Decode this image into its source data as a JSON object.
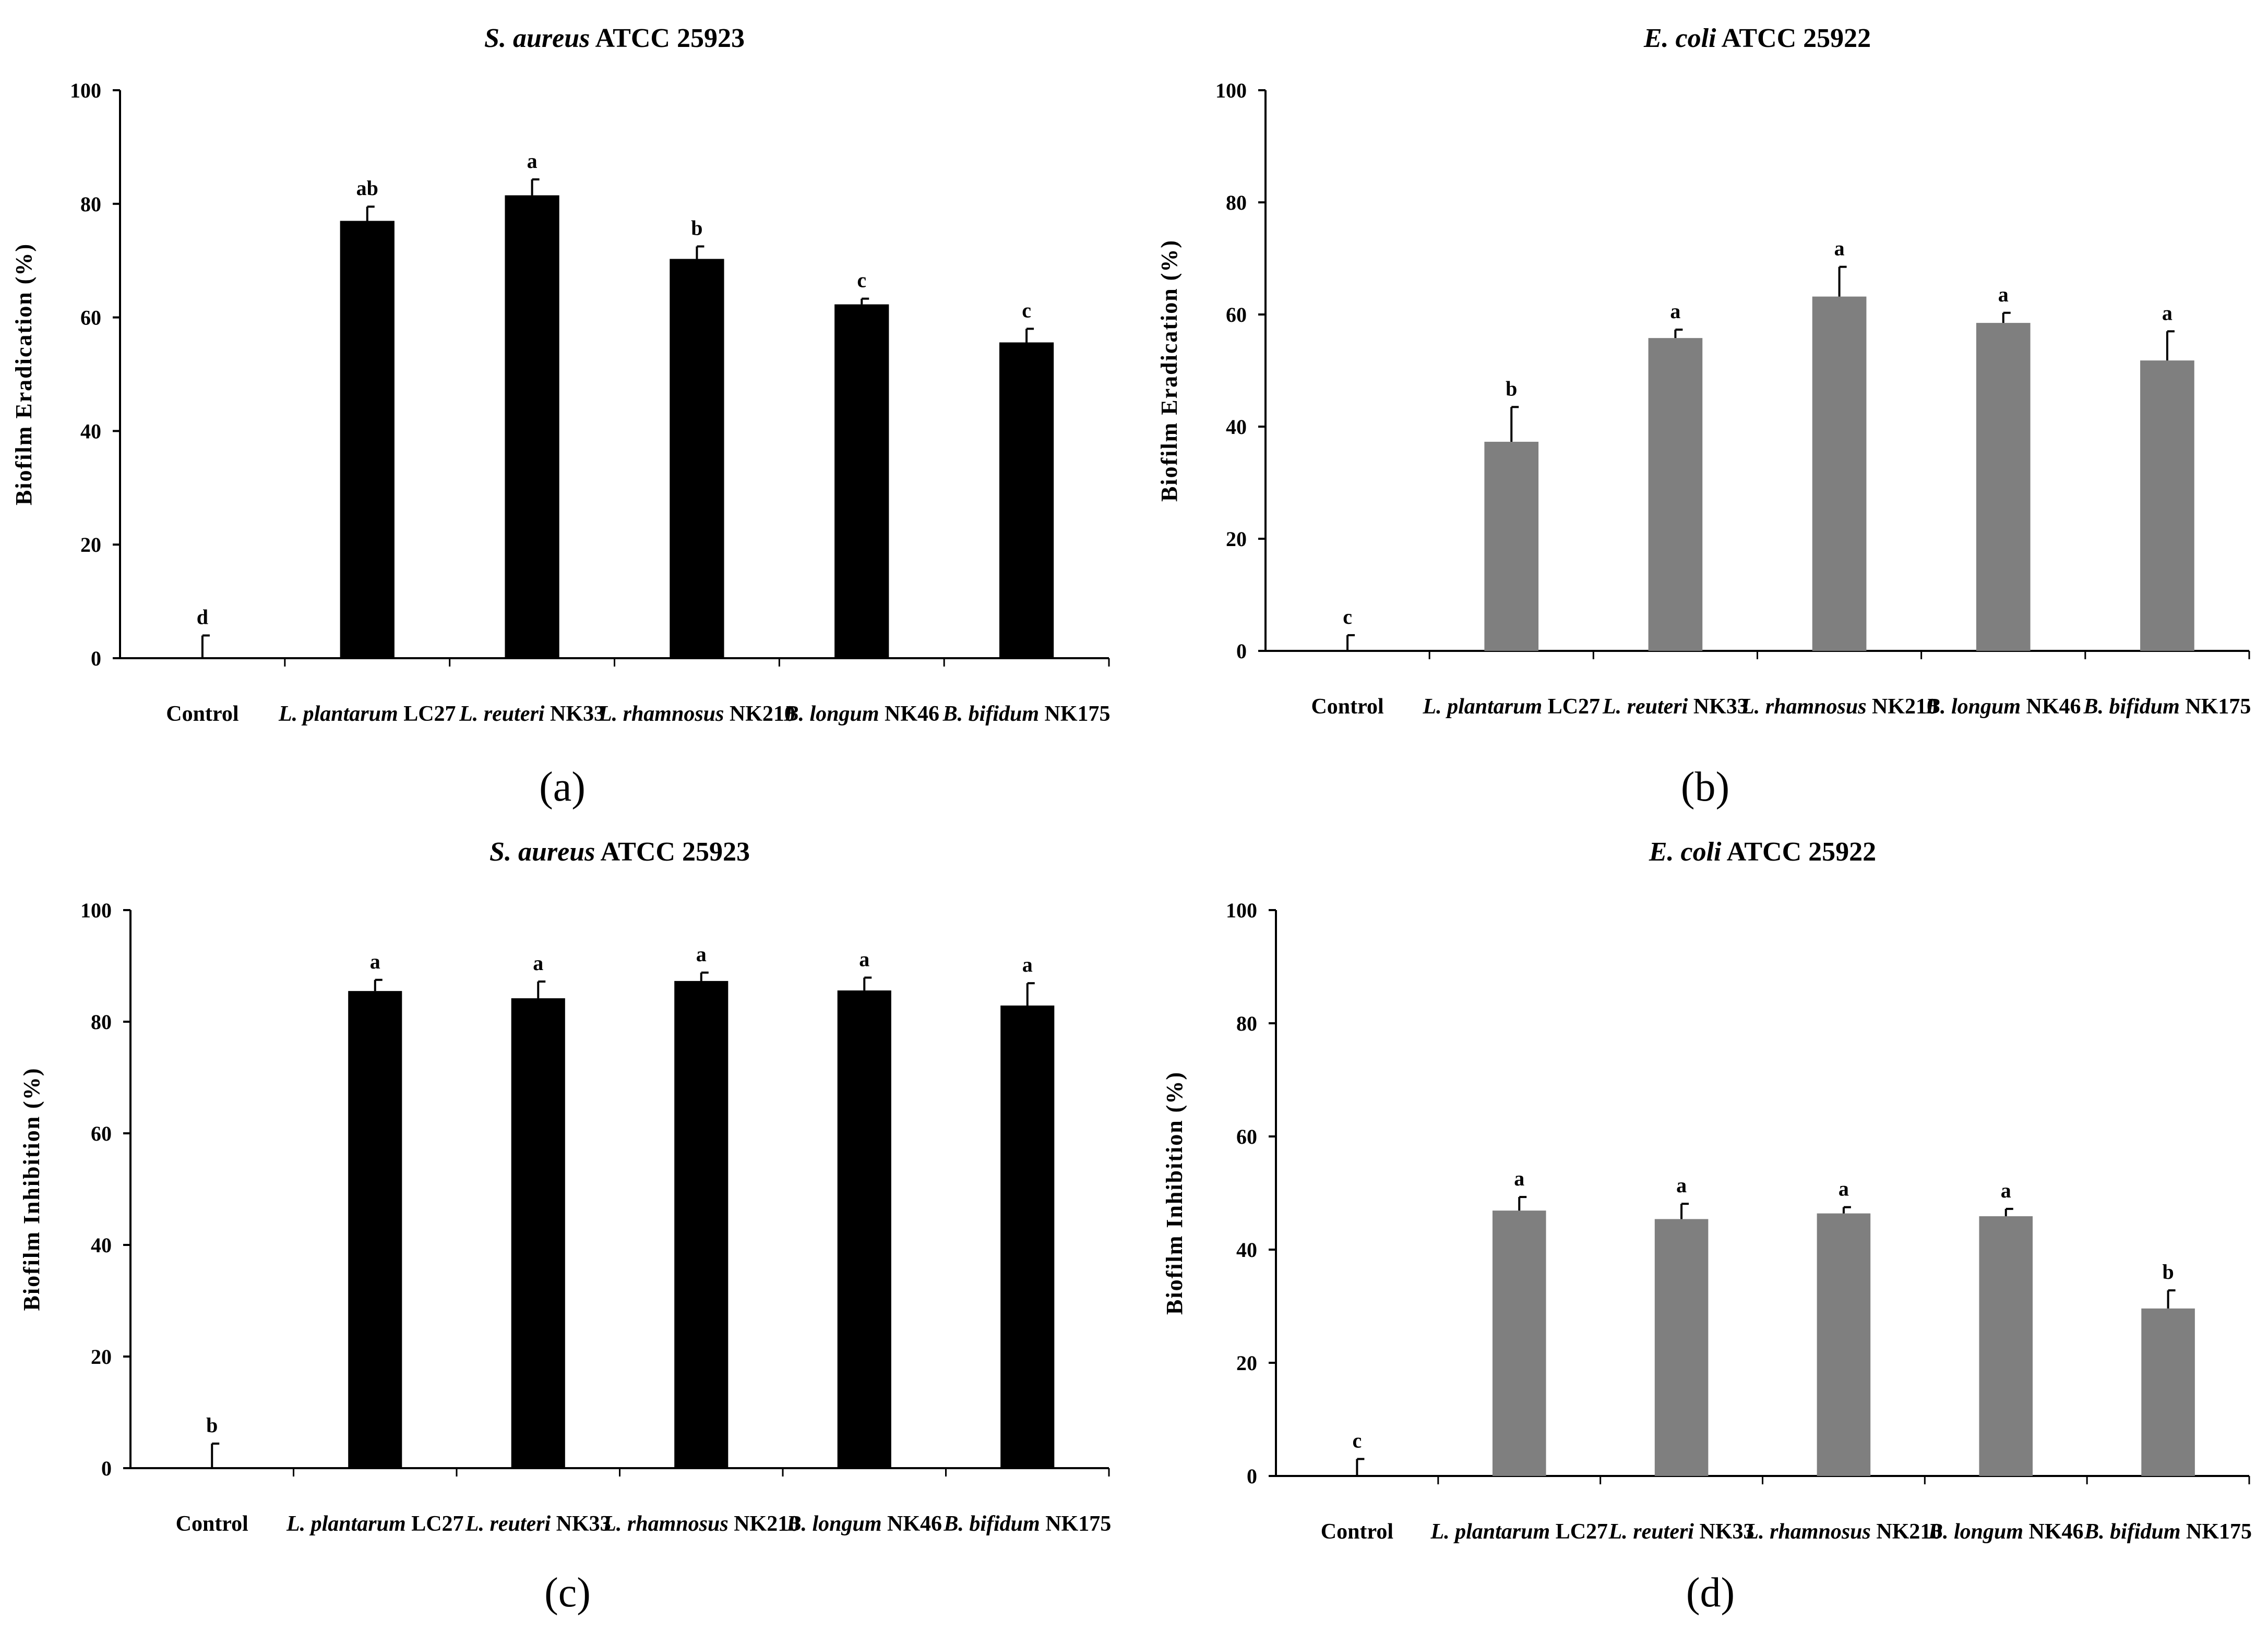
{
  "chart_data": [
    {
      "id": "a",
      "type": "bar",
      "title": {
        "species": "S. aureus",
        "strain": " ATCC 25923"
      },
      "ylabel": "Biofilm Eradication (%)",
      "xlabel": "",
      "ylim": [
        0,
        100
      ],
      "yticks": [
        "0",
        "20",
        "40",
        "60",
        "80",
        "100"
      ],
      "categories": [
        {
          "species": "",
          "strain": "Control"
        },
        {
          "species": "L. plantarum",
          "strain": " LC27"
        },
        {
          "species": "L. reuteri",
          "strain": " NK33"
        },
        {
          "species": "L. rhamnosus",
          "strain": " NK210"
        },
        {
          "species": "B. longum",
          "strain": " NK46"
        },
        {
          "species": "B. bifidum",
          "strain": " NK175"
        }
      ],
      "values": [
        0,
        77,
        81.5,
        70.3,
        62.3,
        55.6
      ],
      "errors": [
        4,
        2.5,
        2.8,
        2.2,
        1.0,
        2.4
      ],
      "significance": [
        "d",
        "ab",
        "a",
        "b",
        "c",
        "c"
      ],
      "bar_color": "#000000",
      "panel_label": "(a)"
    },
    {
      "id": "b",
      "type": "bar",
      "title": {
        "species": "E. coli",
        "strain": " ATCC 25922"
      },
      "ylabel": "Biofilm Eradication (%)",
      "xlabel": "",
      "ylim": [
        0,
        100
      ],
      "yticks": [
        "0",
        "20",
        "40",
        "60",
        "80",
        "100"
      ],
      "categories": [
        {
          "species": "",
          "strain": "Control"
        },
        {
          "species": "L. plantarum",
          "strain": " LC27"
        },
        {
          "species": "L. reuteri",
          "strain": " NK33"
        },
        {
          "species": "L. rhamnosus",
          "strain": " NK210"
        },
        {
          "species": "B. longum",
          "strain": " NK46"
        },
        {
          "species": "B. bifidum",
          "strain": " NK175"
        }
      ],
      "values": [
        0,
        37.3,
        55.8,
        63.2,
        58.5,
        51.8
      ],
      "errors": [
        2.8,
        6.2,
        1.5,
        5.3,
        1.8,
        5.2
      ],
      "significance": [
        "c",
        "b",
        "a",
        "a",
        "a",
        "a"
      ],
      "bar_color": "#7f7f7f",
      "panel_label": "(b)"
    },
    {
      "id": "c",
      "type": "bar",
      "title": {
        "species": "S. aureus",
        "strain": " ATCC 25923"
      },
      "ylabel": "Biofilm Inhibition (%)",
      "xlabel": "",
      "ylim": [
        0,
        100
      ],
      "yticks": [
        "0",
        "20",
        "40",
        "60",
        "80",
        "100"
      ],
      "categories": [
        {
          "species": "",
          "strain": "Control"
        },
        {
          "species": "L. plantarum",
          "strain": " LC27"
        },
        {
          "species": "L. reuteri",
          "strain": " NK33"
        },
        {
          "species": "L. rhamnosus",
          "strain": " NK210"
        },
        {
          "species": "B. longum",
          "strain": " NK46"
        },
        {
          "species": "B. bifidum",
          "strain": " NK175"
        }
      ],
      "values": [
        0,
        85.5,
        84.2,
        87.3,
        85.6,
        82.9
      ],
      "errors": [
        4.4,
        2.0,
        3.0,
        1.5,
        2.3,
        4.0
      ],
      "significance": [
        "b",
        "a",
        "a",
        "a",
        "a",
        "a"
      ],
      "bar_color": "#000000",
      "panel_label": "(c)"
    },
    {
      "id": "d",
      "type": "bar",
      "title": {
        "species": "E. coli",
        "strain": " ATCC 25922"
      },
      "ylabel": "Biofilm Inhibition (%)",
      "xlabel": "",
      "ylim": [
        0,
        100
      ],
      "yticks": [
        "0",
        "20",
        "40",
        "60",
        "80",
        "100"
      ],
      "categories": [
        {
          "species": "",
          "strain": "Control"
        },
        {
          "species": "L. plantarum",
          "strain": " LC27"
        },
        {
          "species": "L. reuteri",
          "strain": " NK33"
        },
        {
          "species": "L. rhamnosus",
          "strain": " NK210"
        },
        {
          "species": "B. longum",
          "strain": " NK46"
        },
        {
          "species": "B. bifidum",
          "strain": " NK175"
        }
      ],
      "values": [
        0,
        46.9,
        45.4,
        46.4,
        45.9,
        29.6
      ],
      "errors": [
        3.0,
        2.4,
        2.7,
        1.1,
        1.3,
        3.2
      ],
      "significance": [
        "c",
        "a",
        "a",
        "a",
        "a",
        "b"
      ],
      "bar_color": "#7f7f7f",
      "panel_label": "(d)"
    }
  ]
}
